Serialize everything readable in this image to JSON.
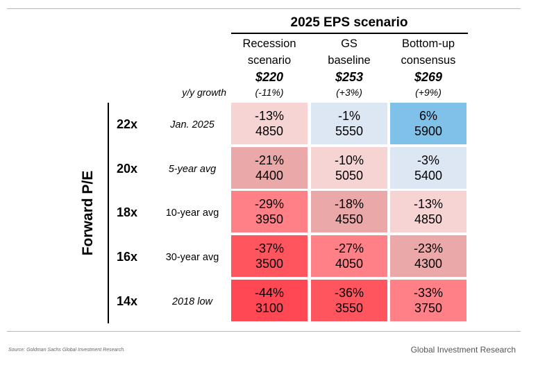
{
  "chart_data": {
    "type": "table",
    "title": "2025 EPS scenario",
    "row_axis_label": "Forward P/E",
    "growth_label": "y/y growth",
    "columns": [
      {
        "name_line1": "Recession",
        "name_line2": "scenario",
        "eps": "$220",
        "growth": "(-11%)"
      },
      {
        "name_line1": "GS",
        "name_line2": "baseline",
        "eps": "$253",
        "growth": "(+3%)"
      },
      {
        "name_line1": "Bottom-up",
        "name_line2": "consensus",
        "eps": "$269",
        "growth": "(+9%)"
      }
    ],
    "rows": [
      {
        "multiple": "22x",
        "label": "Jan. 2025",
        "italic": true,
        "cells": [
          {
            "pct": "-13%",
            "level": "4850"
          },
          {
            "pct": "-1%",
            "level": "5550"
          },
          {
            "pct": "6%",
            "level": "5900"
          }
        ]
      },
      {
        "multiple": "20x",
        "label": "5-year avg",
        "italic": true,
        "cells": [
          {
            "pct": "-21%",
            "level": "4400"
          },
          {
            "pct": "-10%",
            "level": "5050"
          },
          {
            "pct": "-3%",
            "level": "5400"
          }
        ]
      },
      {
        "multiple": "18x",
        "label": "10-year avg",
        "italic": false,
        "cells": [
          {
            "pct": "-29%",
            "level": "3950"
          },
          {
            "pct": "-18%",
            "level": "4550"
          },
          {
            "pct": "-13%",
            "level": "4850"
          }
        ]
      },
      {
        "multiple": "16x",
        "label": "30-year avg",
        "italic": false,
        "cells": [
          {
            "pct": "-37%",
            "level": "3500"
          },
          {
            "pct": "-27%",
            "level": "4050"
          },
          {
            "pct": "-23%",
            "level": "4300"
          }
        ]
      },
      {
        "multiple": "14x",
        "label": "2018 low",
        "italic": true,
        "cells": [
          {
            "pct": "-44%",
            "level": "3100"
          },
          {
            "pct": "-36%",
            "level": "3550"
          },
          {
            "pct": "-33%",
            "level": "3750"
          }
        ]
      }
    ],
    "cell_colors": [
      [
        "#f6d4d4",
        "#dde6f3",
        "#7fc1e8"
      ],
      [
        "#eba8a8",
        "#f6d4d4",
        "#dde6f3"
      ],
      [
        "#ff8086",
        "#eba8a8",
        "#f6d4d4"
      ],
      [
        "#ff555f",
        "#ff8086",
        "#eba8a8"
      ],
      [
        "#ff4853",
        "#ff555f",
        "#ff8086"
      ]
    ]
  },
  "footer": {
    "source": "Source: Goldman Sachs Global Investment Research.",
    "brand": "Global Investment Research"
  }
}
